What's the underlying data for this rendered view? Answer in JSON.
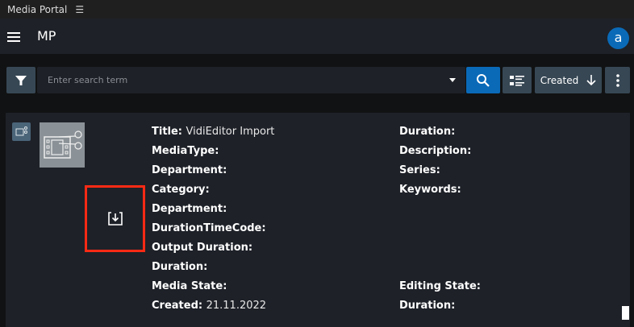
{
  "window": {
    "title": "Media Portal",
    "menu_icon": "hamburger-icon"
  },
  "header": {
    "app_name": "MP",
    "avatar_letter": "a",
    "accent": "#0a6ab8"
  },
  "toolbar": {
    "search_placeholder": "Enter search term",
    "search_value": "",
    "sort_label": "Created",
    "sort_direction": "descending"
  },
  "item": {
    "title_label": "Title:",
    "title_value": "VidiEditor Import",
    "left": [
      "MediaType:",
      "Department:",
      "Category:",
      "Department:",
      "DurationTimeCode:",
      "Output Duration:",
      "Duration:",
      "Media State:"
    ],
    "created_label": "Created:",
    "created_value": "21.11.2022",
    "right": [
      "Duration:",
      "Description:",
      "Series:",
      "Keywords:"
    ],
    "right_bottom": [
      "Editing State:",
      "Duration:"
    ]
  }
}
